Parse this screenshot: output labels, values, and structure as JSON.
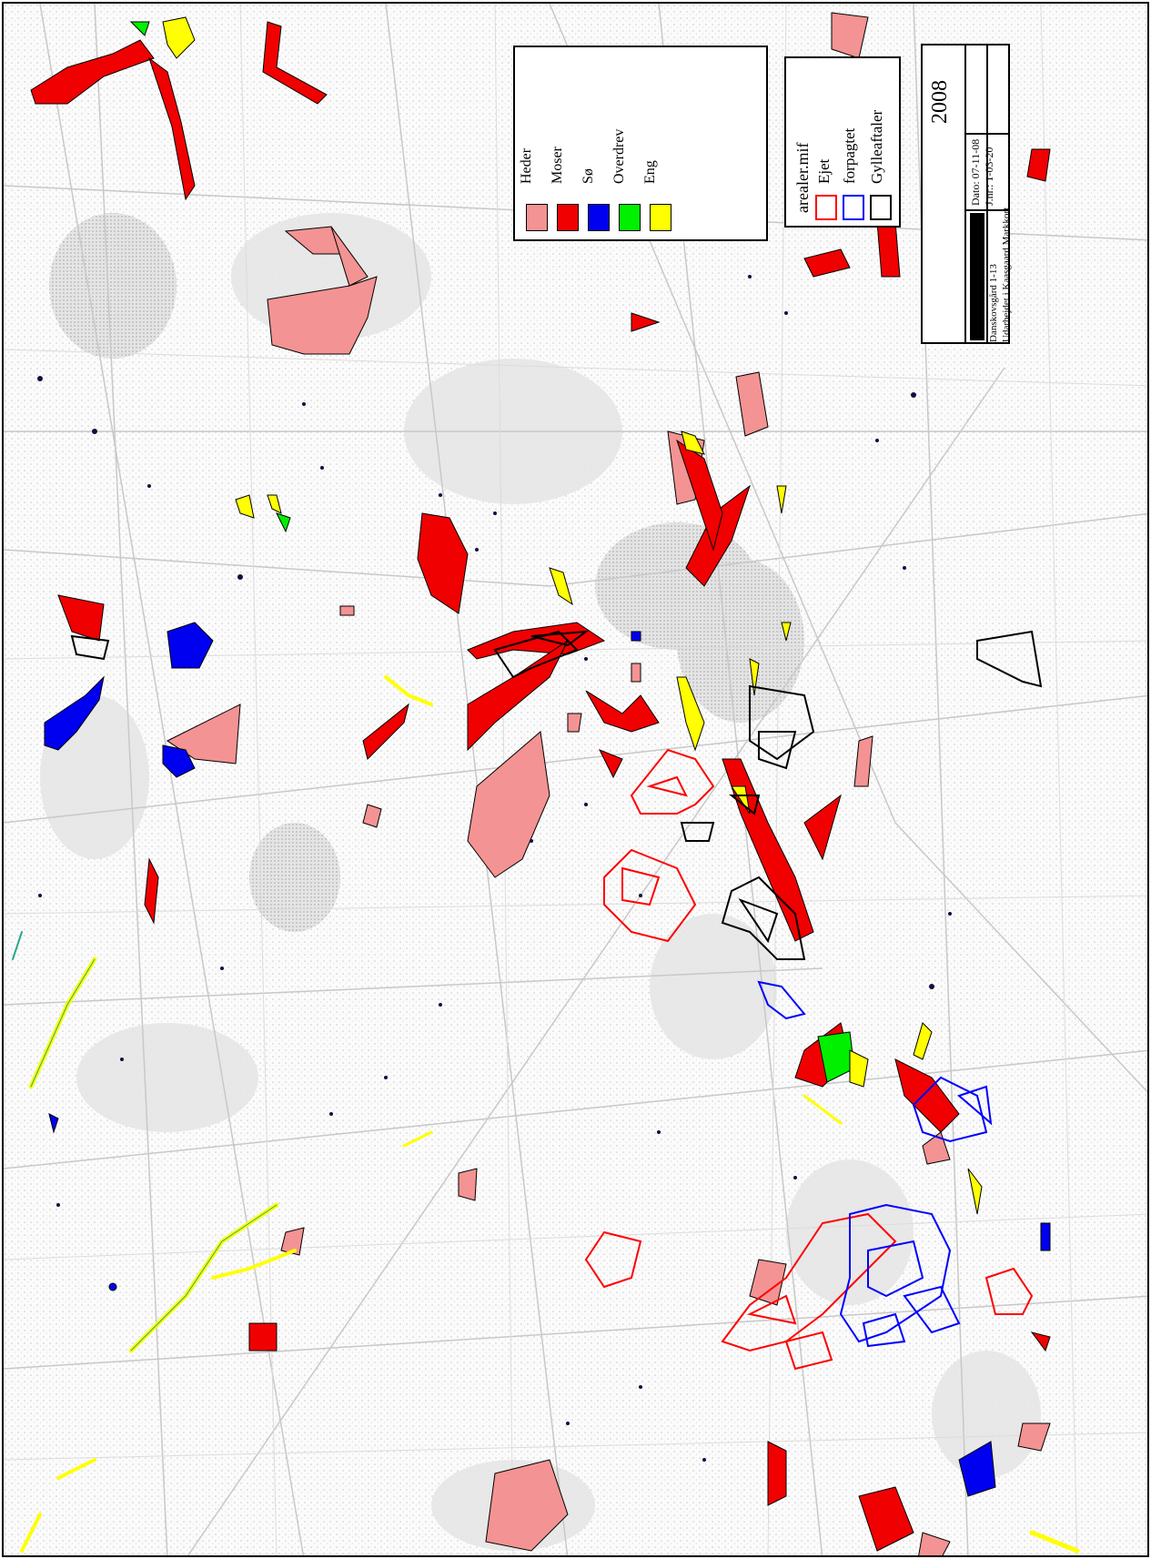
{
  "legend_habitats": {
    "items": [
      {
        "label": "Heder",
        "color": "#f49393"
      },
      {
        "label": "Moser",
        "color": "#f00000"
      },
      {
        "label": "Sø",
        "color": "#0000f0"
      },
      {
        "label": "Overdrev",
        "color": "#00f000"
      },
      {
        "label": "Eng",
        "color": "#ffff00"
      }
    ]
  },
  "legend_areas": {
    "title": "arealer.mif",
    "items": [
      {
        "label": "Ejet",
        "color": "#ff0000"
      },
      {
        "label": "forpagtet",
        "color": "#0000ff"
      },
      {
        "label": "Gylleaftaler",
        "color": "#000000"
      }
    ]
  },
  "info_box": {
    "year": "2008",
    "date": "Dato: 07-11-08",
    "journal": "J.nr.: 1-03-20",
    "scale_label": "Danskovsgård 1-13",
    "owner": "Udarbejdet i Kaasgaard Markkort"
  }
}
